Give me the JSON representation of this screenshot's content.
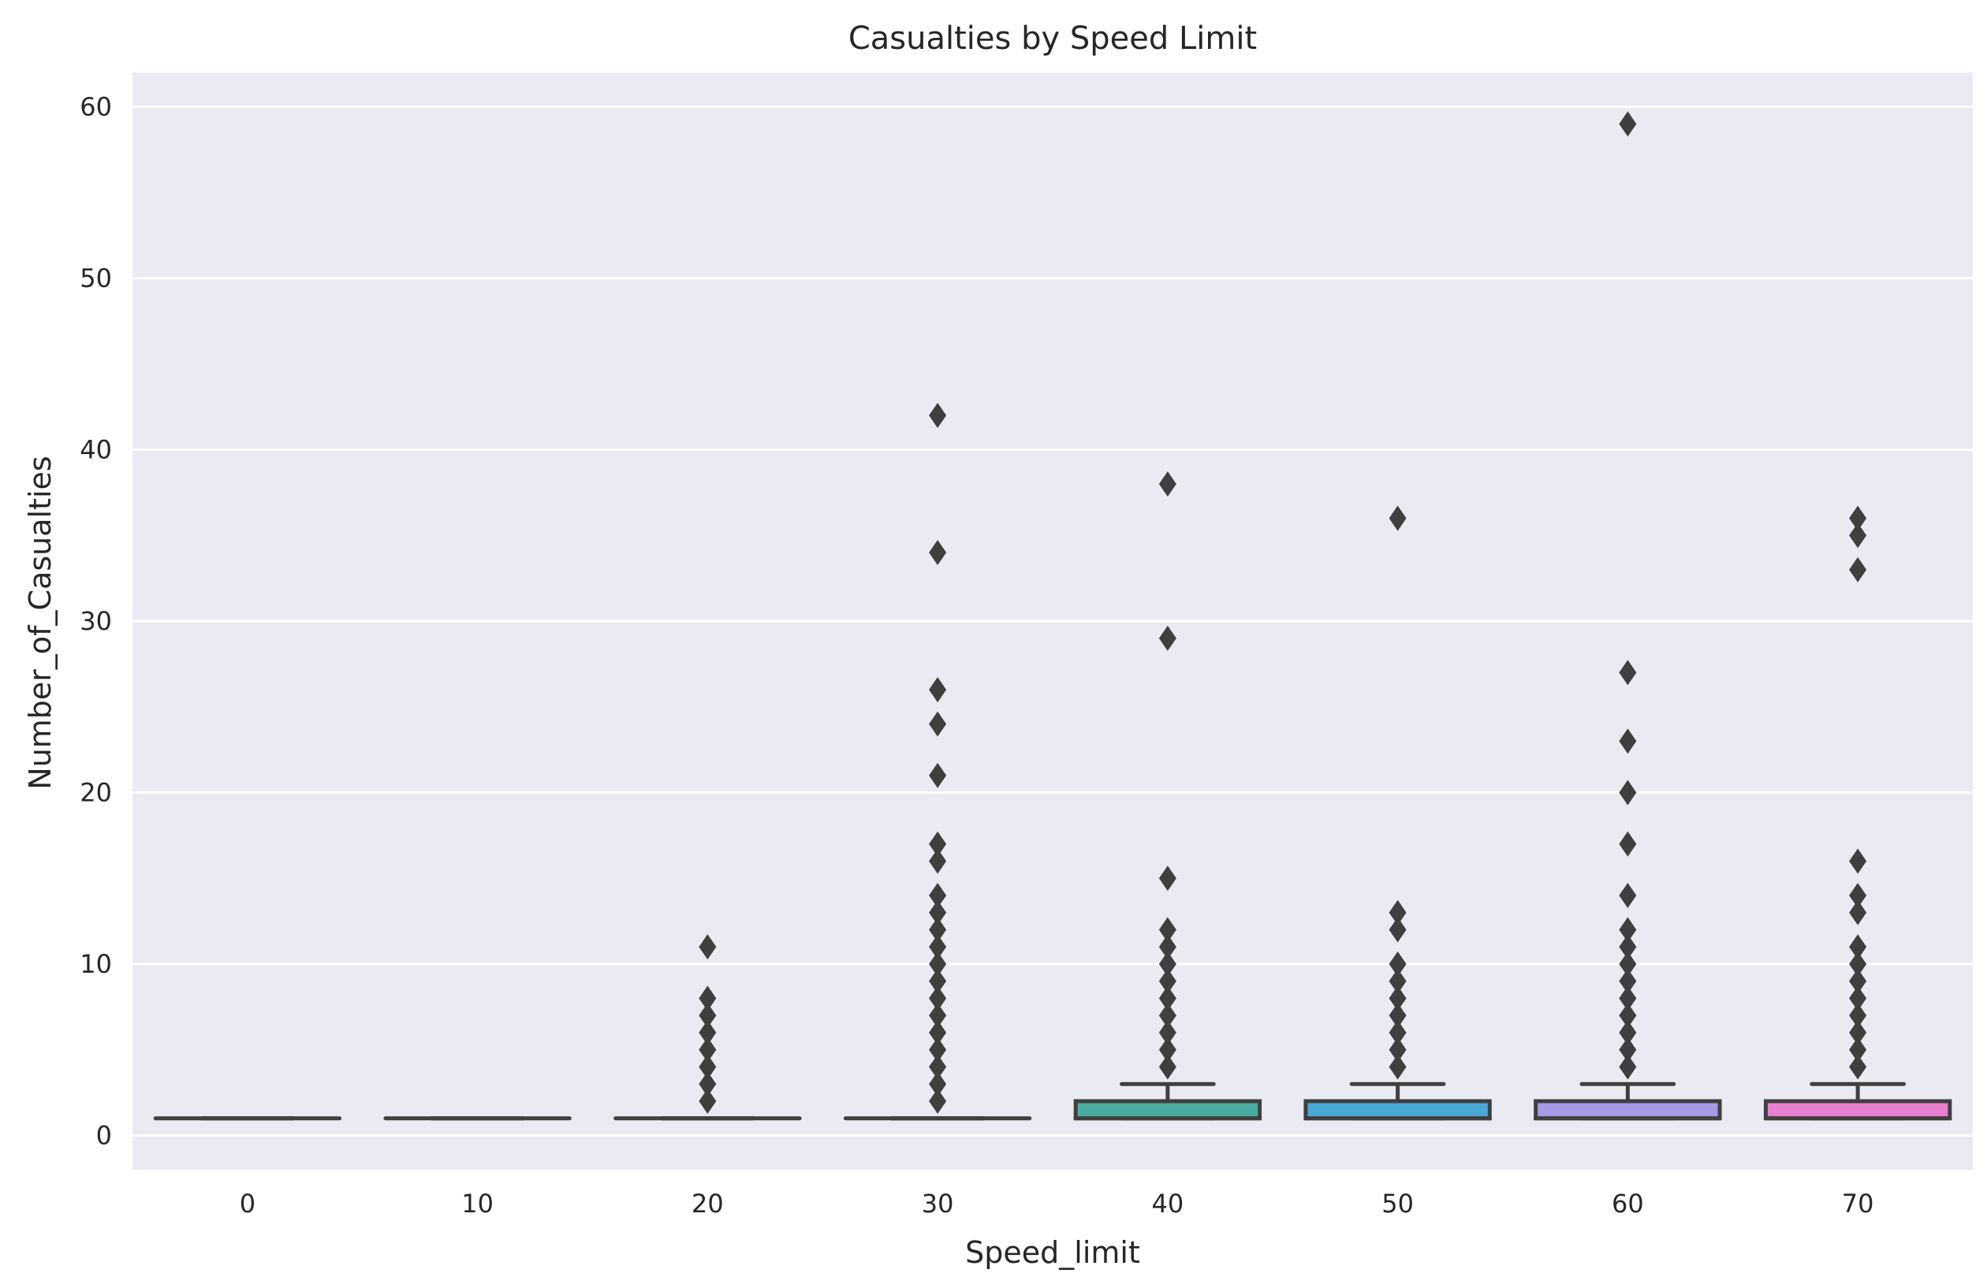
{
  "chart_data": {
    "type": "box",
    "title": "Casualties by Speed Limit",
    "xlabel": "Speed_limit",
    "ylabel": "Number_of_Casualties",
    "ylim": [
      -2,
      62
    ],
    "yticks": [
      0,
      10,
      20,
      30,
      40,
      50,
      60
    ],
    "grid": true,
    "categories": [
      "0",
      "10",
      "20",
      "30",
      "40",
      "50",
      "60",
      "70"
    ],
    "colors": [
      "#e8a0a0",
      "#d8a86a",
      "#b7b45c",
      "#7cc27a",
      "#4aada0",
      "#4aa8d8",
      "#a49ae8",
      "#e87fcf"
    ],
    "edge_color": "#3f3f3f",
    "background": "#eaeaf2",
    "boxes": [
      {
        "q1": 1,
        "median": 1,
        "q3": 1,
        "whislo": 1,
        "whishi": 1,
        "fliers": []
      },
      {
        "q1": 1,
        "median": 1,
        "q3": 1,
        "whislo": 1,
        "whishi": 1,
        "fliers": []
      },
      {
        "q1": 1,
        "median": 1,
        "q3": 1,
        "whislo": 1,
        "whishi": 1,
        "fliers": [
          2,
          3,
          4,
          5,
          6,
          7,
          8,
          11
        ]
      },
      {
        "q1": 1,
        "median": 1,
        "q3": 1,
        "whislo": 1,
        "whishi": 1,
        "fliers": [
          2,
          3,
          4,
          5,
          6,
          7,
          8,
          9,
          10,
          11,
          12,
          13,
          14,
          16,
          17,
          21,
          24,
          26,
          34,
          42
        ]
      },
      {
        "q1": 1,
        "median": 1,
        "q3": 2,
        "whislo": 1,
        "whishi": 3,
        "fliers": [
          4,
          5,
          6,
          7,
          8,
          9,
          10,
          11,
          12,
          15,
          29,
          38
        ]
      },
      {
        "q1": 1,
        "median": 1,
        "q3": 2,
        "whislo": 1,
        "whishi": 3,
        "fliers": [
          4,
          5,
          6,
          7,
          8,
          9,
          10,
          12,
          13,
          36
        ]
      },
      {
        "q1": 1,
        "median": 1,
        "q3": 2,
        "whislo": 1,
        "whishi": 3,
        "fliers": [
          4,
          5,
          6,
          7,
          8,
          9,
          10,
          11,
          12,
          14,
          17,
          20,
          23,
          27,
          59
        ]
      },
      {
        "q1": 1,
        "median": 1,
        "q3": 2,
        "whislo": 1,
        "whishi": 3,
        "fliers": [
          4,
          5,
          6,
          7,
          8,
          9,
          10,
          11,
          13,
          14,
          16,
          33,
          35,
          36
        ]
      }
    ]
  }
}
